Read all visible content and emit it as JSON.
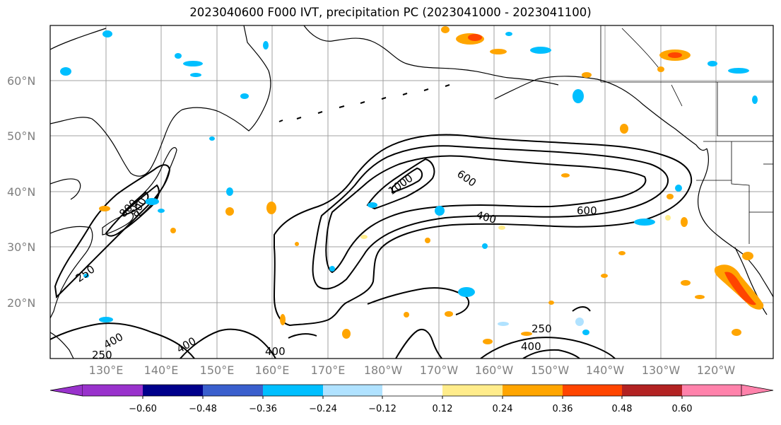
{
  "title": "2023040600 F000 IVT, precipitation PC (2023041000 - 2023041100)",
  "lat_labels": [
    "60°N",
    "50°N",
    "40°N",
    "30°N",
    "20°N"
  ],
  "lon_labels": [
    "130°E",
    "140°E",
    "150°E",
    "160°E",
    "170°E",
    "180°W",
    "170°W",
    "160°W",
    "150°W",
    "140°W",
    "130°W",
    "120°W"
  ],
  "colorbar": {
    "colors": [
      "#9932CC",
      "#00008B",
      "#3A5FCD",
      "#00BFFF",
      "#B0E2FF",
      "#FFFFFF",
      "#FFEC8B",
      "#FFA500",
      "#FF4500",
      "#B22222",
      "#FF82AB"
    ],
    "tick_labels": [
      "−0.60",
      "−0.48",
      "−0.36",
      "−0.24",
      "−0.12",
      "0.12",
      "0.24",
      "0.36",
      "0.48",
      "0.60"
    ]
  },
  "contour_labels": {
    "c1": "600",
    "c2": "600",
    "c3": "400",
    "c4": "1000",
    "c5": "800",
    "c6": "250",
    "c7": "250",
    "c8": "400",
    "c9": "400",
    "c10": "400",
    "c11": "250",
    "c12": "800",
    "c13": "400"
  }
}
